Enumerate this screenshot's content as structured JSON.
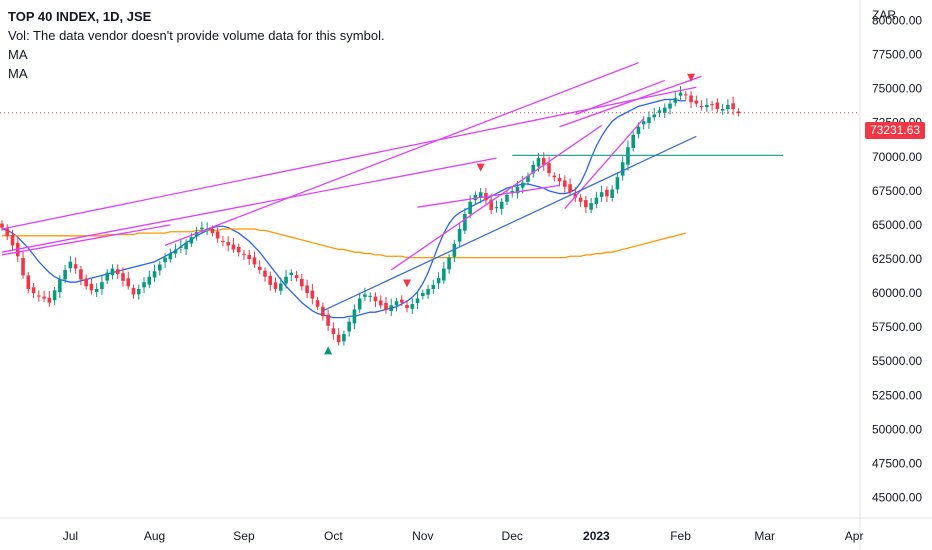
{
  "chart_data": {
    "type": "candlestick",
    "title": "TOP 40 INDEX, 1D, JSE",
    "legend_lines": [
      "Vol: The data vendor doesn't provide volume data for this symbol.",
      "MA",
      "MA"
    ],
    "currency": "ZAR",
    "last_price": "73231.63",
    "ylim": [
      43500,
      81500
    ],
    "y_ticks": [
      "80000.00",
      "77500.00",
      "75000.00",
      "72500.00",
      "70000.00",
      "67500.00",
      "65000.00",
      "62500.00",
      "60000.00",
      "57500.00",
      "55000.00",
      "52500.00",
      "50000.00",
      "47500.00",
      "45000.00"
    ],
    "x_ticks": [
      "Jul",
      "Aug",
      "Sep",
      "Oct",
      "Nov",
      "Dec",
      "2023",
      "Feb",
      "Mar",
      "Apr"
    ],
    "colors": {
      "up": "#089981",
      "down": "#f23645",
      "ma_fast": "#2962ff",
      "ma_slow": "#ff9800",
      "trendline": "#e040fb",
      "support": "#3b6fd8",
      "level": "#26a69a",
      "price_line": "#f23645",
      "axis_text": "#131722"
    },
    "series": [
      {
        "name": "MA",
        "values": [
          64700,
          64600,
          64400,
          64100,
          63700,
          63300,
          62800,
          62300,
          61900,
          61500,
          61200,
          61000,
          60900,
          60800,
          60800,
          60900,
          61000,
          61100,
          61200,
          61300,
          61400,
          61500,
          61600,
          61700,
          61800,
          61900,
          62000,
          62100,
          62200,
          62300,
          62500,
          62700,
          62900,
          63100,
          63400,
          63700,
          63900,
          64200,
          64400,
          64600,
          64800,
          64900,
          64900,
          64800,
          64600,
          64400,
          64100,
          63800,
          63400,
          63000,
          62500,
          62000,
          61500,
          61000,
          60500,
          60100,
          59700,
          59300,
          59000,
          58700,
          58500,
          58400,
          58300,
          58200,
          58200,
          58200,
          58300,
          58300,
          58400,
          58500,
          58600,
          58600,
          58700,
          58800,
          58900,
          59000,
          59200,
          59400,
          59700,
          60100,
          60700,
          61500,
          62500,
          63500,
          64400,
          65100,
          65600,
          65900,
          66100,
          66300,
          66500,
          66700,
          66900,
          67100,
          67300,
          67500,
          67700,
          67800,
          67900,
          68000,
          68000,
          67900,
          67800,
          67700,
          67500,
          67400,
          67300,
          67300,
          67400,
          67600,
          68100,
          68900,
          69900,
          70800,
          71500,
          72100,
          72600,
          72900,
          73100,
          73300,
          73500,
          73700,
          73800,
          73900,
          74000,
          74100,
          74200,
          74200,
          74200,
          74100,
          74100
        ]
      },
      {
        "name": "MA",
        "values": [
          64200,
          64200,
          64200,
          64200,
          64200,
          64200,
          64200,
          64200,
          64200,
          64200,
          64200,
          64200,
          64200,
          64200,
          64200,
          64200,
          64200,
          64200,
          64200,
          64200,
          64300,
          64300,
          64300,
          64300,
          64300,
          64300,
          64400,
          64400,
          64400,
          64400,
          64400,
          64400,
          64500,
          64500,
          64500,
          64500,
          64500,
          64600,
          64600,
          64600,
          64600,
          64600,
          64700,
          64700,
          64700,
          64700,
          64700,
          64700,
          64700,
          64600,
          64600,
          64500,
          64400,
          64300,
          64200,
          64100,
          64000,
          63900,
          63800,
          63700,
          63600,
          63500,
          63400,
          63300,
          63200,
          63200,
          63100,
          63000,
          63000,
          62900,
          62900,
          62800,
          62800,
          62700,
          62700,
          62700,
          62700,
          62600,
          62600,
          62600,
          62600,
          62600,
          62600,
          62600,
          62600,
          62600,
          62600,
          62600,
          62600,
          62600,
          62600,
          62600,
          62600,
          62600,
          62600,
          62600,
          62600,
          62600,
          62600,
          62600,
          62600,
          62600,
          62600,
          62600,
          62600,
          62600,
          62600,
          62600,
          62700,
          62700,
          62700,
          62800,
          62800,
          62900,
          62900,
          63000,
          63000,
          63100,
          63200,
          63300,
          63400,
          63500,
          63600,
          63700,
          63800,
          63900,
          64000,
          64100,
          64200,
          64300,
          64400
        ]
      }
    ],
    "candle_closes": [
      64800,
      64200,
      63500,
      62700,
      61300,
      60300,
      60000,
      59800,
      59600,
      59300,
      60200,
      61000,
      61700,
      62300,
      61800,
      61000,
      60500,
      60200,
      60300,
      60800,
      61500,
      61800,
      61400,
      60900,
      60500,
      59900,
      60300,
      60800,
      61200,
      61600,
      62100,
      62600,
      62900,
      63200,
      63400,
      63700,
      64100,
      64500,
      64800,
      64700,
      64400,
      64000,
      63800,
      63500,
      63200,
      63000,
      62800,
      62500,
      62100,
      61700,
      61200,
      60600,
      60300,
      60700,
      61200,
      61500,
      61100,
      60500,
      60000,
      59600,
      59000,
      58300,
      57600,
      57000,
      56400,
      57000,
      57900,
      58800,
      59600,
      59900,
      59800,
      59400,
      59100,
      58800,
      59100,
      59400,
      59300,
      58900,
      59200,
      59600,
      60000,
      60300,
      60600,
      61100,
      61800,
      62600,
      63600,
      64700,
      65800,
      66700,
      67200,
      67400,
      66800,
      66100,
      66300,
      66700,
      67200,
      67500,
      67800,
      68100,
      68600,
      69400,
      69900,
      69400,
      68800,
      68500,
      68200,
      67800,
      67400,
      67000,
      66700,
      66300,
      66600,
      67000,
      67400,
      67100,
      67600,
      68500,
      69600,
      70700,
      71600,
      72200,
      72600,
      72900,
      73100,
      73400,
      73600,
      73900,
      74300,
      74700,
      74500,
      74000,
      73900,
      73700,
      73800,
      73800,
      73500,
      73500,
      73800,
      73500,
      73200
    ],
    "annotations": {
      "levels": [
        70100
      ],
      "lines": [
        {
          "x": [
            0,
            132
          ],
          "y": [
            64700,
            75100
          ]
        },
        {
          "x": [
            0,
            94
          ],
          "y": [
            63000,
            69900
          ]
        },
        {
          "x": [
            0,
            32
          ],
          "y": [
            62800,
            65000
          ]
        },
        {
          "x": [
            31,
            121
          ],
          "y": [
            63500,
            76900
          ]
        },
        {
          "x": [
            79,
            106
          ],
          "y": [
            66300,
            67900
          ]
        },
        {
          "x": [
            107,
            122
          ],
          "y": [
            66200,
            72800
          ]
        },
        {
          "x": [
            74,
            114
          ],
          "y": [
            61700,
            72300
          ]
        },
        {
          "x": [
            61,
            132
          ],
          "y": [
            58700,
            71500
          ]
        },
        {
          "x": [
            109,
            126
          ],
          "y": [
            73100,
            75600
          ]
        },
        {
          "x": [
            106,
            133
          ],
          "y": [
            72200,
            75900
          ]
        }
      ]
    },
    "markers": [
      {
        "x": 62,
        "direction": "up"
      },
      {
        "x": 77,
        "direction": "down"
      },
      {
        "x": 91,
        "direction": "down"
      },
      {
        "x": 131,
        "direction": "down"
      }
    ]
  }
}
